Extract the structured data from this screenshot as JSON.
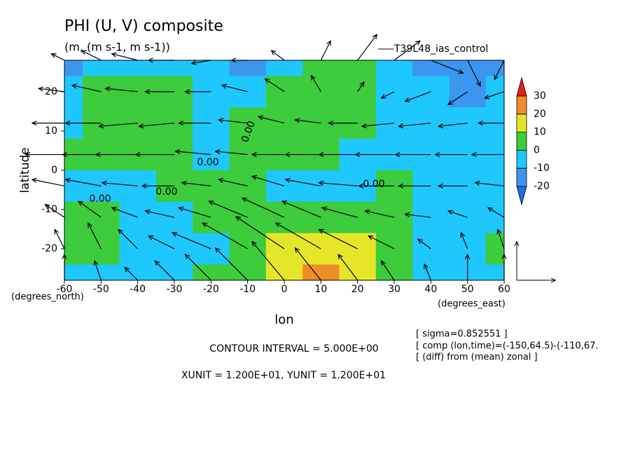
{
  "chart_data": {
    "type": "contour-vector",
    "title": "PHI (U, V) composite",
    "subtitle": "(m, (m s-1, m s-1))",
    "run_label": "T39L48_ias_control",
    "x_label": "lon",
    "y_label": "latitude",
    "x_unit_label": "(degrees_east)",
    "y_unit_label": "(degrees_north)",
    "xlim": [
      -60,
      60
    ],
    "ylim": [
      -28,
      28
    ],
    "xticks": [
      -60,
      -50,
      -40,
      -30,
      -20,
      -10,
      0,
      10,
      20,
      30,
      40,
      50,
      60
    ],
    "yticks": [
      -20,
      -10,
      0,
      10,
      20
    ],
    "grid_lon": [
      -60,
      -50,
      -40,
      -30,
      -20,
      -10,
      0,
      10,
      20,
      30,
      40,
      50,
      60
    ],
    "grid_lat": [
      28,
      20,
      12,
      4,
      -4,
      -12,
      -20,
      -28
    ],
    "field": [
      [
        -12,
        -5,
        -4,
        -4,
        -4,
        -12,
        -3,
        3,
        4,
        -3,
        -15,
        -16,
        -12
      ],
      [
        -5,
        4,
        5,
        4,
        -4,
        -4,
        3,
        5,
        4,
        -4,
        -8,
        -15,
        -6
      ],
      [
        -4,
        4,
        5,
        4,
        -5,
        2,
        4,
        5,
        4,
        -4,
        -6,
        -6,
        -4
      ],
      [
        2,
        3,
        3,
        2,
        -5,
        2,
        3,
        2,
        -3,
        -4,
        -4,
        -5,
        -4
      ],
      [
        -3,
        -4,
        -3,
        2,
        2,
        2,
        -3,
        -3,
        -3,
        2,
        -4,
        -4,
        -4
      ],
      [
        3,
        2,
        -4,
        -4,
        2,
        3,
        4,
        4,
        4,
        3,
        -3,
        -4,
        -4
      ],
      [
        3,
        2,
        -4,
        -4,
        -3,
        3,
        12,
        15,
        14,
        4,
        -3,
        -3,
        2
      ],
      [
        -3,
        -4,
        -4,
        -4,
        2,
        3,
        12,
        22,
        13,
        4,
        -3,
        -3,
        -3
      ]
    ],
    "u": [
      [
        -4,
        -6,
        -8,
        -8,
        -6,
        -5,
        -4,
        3,
        6,
        8,
        10,
        4,
        -3
      ],
      [
        -8,
        -9,
        -10,
        -9,
        -8,
        -8,
        -6,
        -3,
        2,
        -4,
        -8,
        -6,
        -6
      ],
      [
        -10,
        -11,
        -12,
        -11,
        -10,
        -9,
        -8,
        -8,
        -9,
        -10,
        -10,
        -9,
        -8
      ],
      [
        -12,
        -12,
        -13,
        -12,
        -11,
        -10,
        -10,
        -11,
        -12,
        -12,
        -11,
        -10,
        -10
      ],
      [
        -10,
        -11,
        -11,
        -10,
        -9,
        -9,
        -10,
        -11,
        -12,
        -11,
        -10,
        -9,
        -9
      ],
      [
        -6,
        -7,
        -8,
        -9,
        -10,
        -12,
        -13,
        -12,
        -11,
        -9,
        -8,
        -6,
        -5
      ],
      [
        -3,
        -4,
        -6,
        -8,
        -12,
        -14,
        -15,
        -14,
        -12,
        -8,
        -4,
        -2,
        -2
      ],
      [
        0,
        -2,
        -4,
        -6,
        -8,
        -10,
        -10,
        -8,
        -6,
        -4,
        -2,
        0,
        0
      ]
    ],
    "v": [
      [
        2,
        3,
        2,
        0,
        -1,
        0,
        3,
        6,
        8,
        6,
        -4,
        -8,
        -6
      ],
      [
        1,
        2,
        1,
        0,
        0,
        2,
        4,
        5,
        3,
        -2,
        -3,
        -4,
        -2
      ],
      [
        0,
        0,
        -1,
        -1,
        0,
        1,
        2,
        1,
        0,
        -1,
        -1,
        -1,
        0
      ],
      [
        0,
        0,
        0,
        0,
        1,
        1,
        0,
        0,
        0,
        0,
        0,
        0,
        0
      ],
      [
        2,
        2,
        1,
        0,
        1,
        2,
        3,
        2,
        1,
        0,
        0,
        0,
        1
      ],
      [
        4,
        5,
        3,
        2,
        3,
        5,
        6,
        5,
        3,
        2,
        1,
        2,
        3
      ],
      [
        6,
        8,
        6,
        4,
        5,
        8,
        10,
        8,
        6,
        4,
        3,
        5,
        6
      ],
      [
        8,
        6,
        4,
        6,
        8,
        10,
        12,
        10,
        8,
        6,
        5,
        8,
        8
      ]
    ],
    "vector_unit": 12,
    "colorbar": {
      "levels": [
        -20,
        -10,
        0,
        10,
        20,
        30
      ],
      "colors": [
        "#1e6ee6",
        "#3c96f0",
        "#1ec8ff",
        "#3ccc3c",
        "#e6e628",
        "#f08c28",
        "#e61e1e"
      ]
    },
    "contour_labels": [
      "0.00",
      "0.00",
      "0.00",
      "0.00",
      "0.00"
    ],
    "contour_interval_text": "CONTOUR INTERVAL = 5.000E+00",
    "unit_text": "XUNIT = 1.200E+01, YUNIT = 1.200E+01",
    "info": [
      "[ sigma=0.852551 ]",
      "[ comp (lon,time)=(-150,64.5)-(-110,67.",
      "[ (diff) from (mean) zonal ]"
    ]
  }
}
